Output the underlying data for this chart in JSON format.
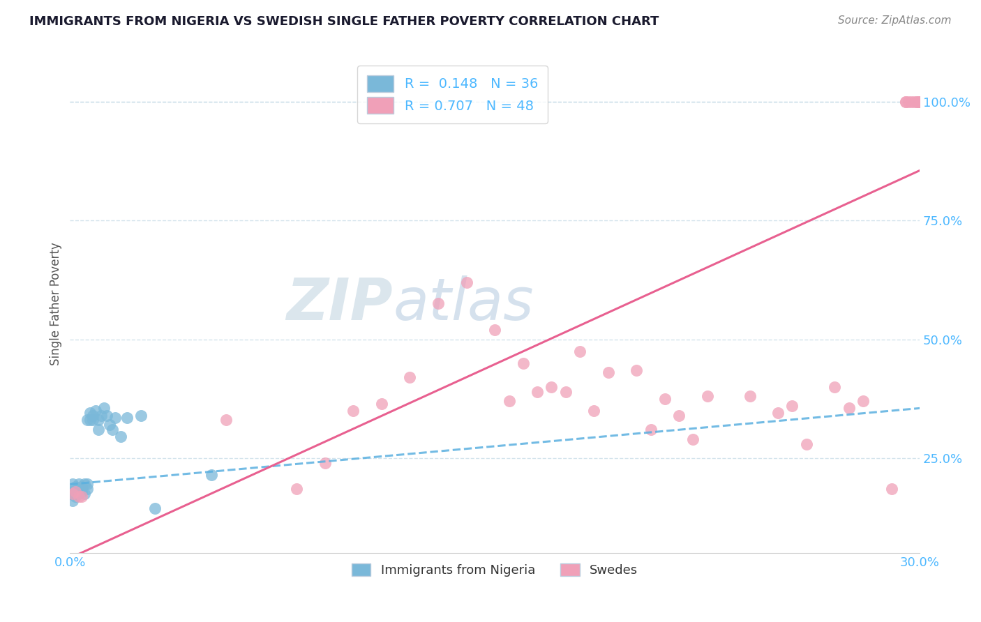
{
  "title": "IMMIGRANTS FROM NIGERIA VS SWEDISH SINGLE FATHER POVERTY CORRELATION CHART",
  "source": "Source: ZipAtlas.com",
  "ylabel": "Single Father Poverty",
  "legend_label1": "Immigrants from Nigeria",
  "legend_label2": "Swedes",
  "legend_r1": "R =  0.148",
  "legend_n1": "N = 36",
  "legend_r2": "R = 0.707",
  "legend_n2": "N = 48",
  "watermark": "ZIPatlas",
  "title_color": "#1a1a2e",
  "source_color": "#888888",
  "blue_scatter_color": "#7ab8d9",
  "pink_scatter_color": "#f0a0b8",
  "blue_line_color": "#5ab0e0",
  "pink_line_color": "#e86090",
  "axis_label_color": "#4db8ff",
  "grid_color": "#c8dde8",
  "background_color": "#ffffff",
  "nigeria_x": [
    0.0005,
    0.001,
    0.001,
    0.001,
    0.001,
    0.002,
    0.002,
    0.002,
    0.003,
    0.003,
    0.003,
    0.004,
    0.004,
    0.005,
    0.005,
    0.006,
    0.006,
    0.006,
    0.007,
    0.007,
    0.008,
    0.008,
    0.009,
    0.01,
    0.01,
    0.011,
    0.012,
    0.013,
    0.014,
    0.015,
    0.016,
    0.018,
    0.02,
    0.025,
    0.03,
    0.05
  ],
  "nigeria_y": [
    0.175,
    0.16,
    0.175,
    0.18,
    0.195,
    0.17,
    0.18,
    0.19,
    0.175,
    0.185,
    0.195,
    0.18,
    0.19,
    0.175,
    0.195,
    0.33,
    0.185,
    0.195,
    0.345,
    0.33,
    0.34,
    0.33,
    0.35,
    0.33,
    0.31,
    0.34,
    0.355,
    0.34,
    0.32,
    0.31,
    0.335,
    0.295,
    0.335,
    0.34,
    0.145,
    0.215
  ],
  "swedes_x": [
    0.001,
    0.002,
    0.003,
    0.004,
    0.055,
    0.08,
    0.09,
    0.1,
    0.11,
    0.12,
    0.13,
    0.14,
    0.15,
    0.155,
    0.16,
    0.165,
    0.17,
    0.175,
    0.18,
    0.185,
    0.19,
    0.2,
    0.205,
    0.21,
    0.215,
    0.22,
    0.225,
    0.24,
    0.25,
    0.255,
    0.26,
    0.27,
    0.275,
    0.28,
    0.29,
    0.295,
    0.295,
    0.296,
    0.297,
    0.298,
    0.299,
    0.299,
    0.3,
    0.3,
    0.3,
    0.3,
    0.3,
    0.3
  ],
  "swedes_y": [
    0.175,
    0.18,
    0.17,
    0.17,
    0.33,
    0.185,
    0.24,
    0.35,
    0.365,
    0.42,
    0.575,
    0.62,
    0.52,
    0.37,
    0.45,
    0.39,
    0.4,
    0.39,
    0.475,
    0.35,
    0.43,
    0.435,
    0.31,
    0.375,
    0.34,
    0.29,
    0.38,
    0.38,
    0.345,
    0.36,
    0.28,
    0.4,
    0.355,
    0.37,
    0.185,
    1.0,
    1.0,
    1.0,
    1.0,
    1.0,
    1.0,
    1.0,
    1.0,
    1.0,
    1.0,
    1.0,
    1.0,
    1.0
  ],
  "xlim": [
    0.0,
    0.3
  ],
  "ylim": [
    0.05,
    1.1
  ],
  "yticks": [
    0.25,
    0.5,
    0.75,
    1.0
  ],
  "ytick_labels": [
    "25.0%",
    "50.0%",
    "75.0%",
    "100.0%"
  ],
  "nigeria_line_x0": 0.0,
  "nigeria_line_y0": 0.195,
  "nigeria_line_x1": 0.3,
  "nigeria_line_y1": 0.355,
  "sweden_line_x0": 0.0,
  "sweden_line_y0": 0.04,
  "sweden_line_x1": 0.3,
  "sweden_line_y1": 0.855
}
